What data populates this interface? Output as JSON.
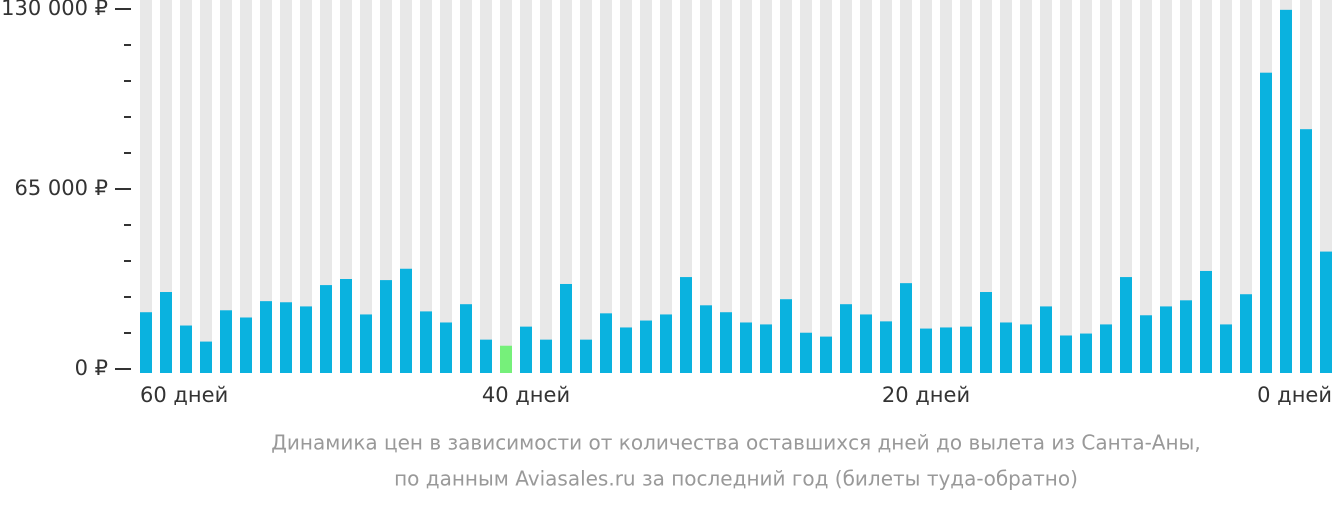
{
  "chart_data": {
    "type": "bar",
    "categories": [
      "60 дней",
      null,
      null,
      null,
      null,
      null,
      null,
      null,
      null,
      null,
      null,
      null,
      null,
      null,
      null,
      null,
      null,
      null,
      null,
      "40 дней",
      null,
      null,
      null,
      null,
      null,
      null,
      null,
      null,
      null,
      null,
      null,
      null,
      null,
      null,
      null,
      null,
      null,
      null,
      null,
      "20 дней",
      null,
      null,
      null,
      null,
      null,
      null,
      null,
      null,
      null,
      null,
      null,
      null,
      null,
      null,
      null,
      null,
      null,
      null,
      null,
      "0 дней"
    ],
    "values": [
      20500,
      27800,
      15700,
      9900,
      21200,
      18600,
      24500,
      24100,
      22600,
      30300,
      32500,
      19700,
      32100,
      36200,
      20800,
      16800,
      23400,
      10600,
      8400,
      15300,
      10600,
      30700,
      10600,
      20100,
      15000,
      17500,
      19700,
      33200,
      23000,
      20500,
      16800,
      16100,
      25200,
      13100,
      11700,
      23400,
      19700,
      17200,
      31000,
      14600,
      15000,
      15300,
      27800,
      16800,
      16100,
      22600,
      12100,
      12800,
      16100,
      33200,
      19400,
      22600,
      24800,
      35400,
      16100,
      27000,
      107000,
      129700,
      86600,
      42400
    ],
    "colors": [
      "#0ab2df",
      "#0ab2df",
      "#0ab2df",
      "#0ab2df",
      "#0ab2df",
      "#0ab2df",
      "#0ab2df",
      "#0ab2df",
      "#0ab2df",
      "#0ab2df",
      "#0ab2df",
      "#0ab2df",
      "#0ab2df",
      "#0ab2df",
      "#0ab2df",
      "#0ab2df",
      "#0ab2df",
      "#0ab2df",
      "#76f07a",
      "#0ab2df",
      "#0ab2df",
      "#0ab2df",
      "#0ab2df",
      "#0ab2df",
      "#0ab2df",
      "#0ab2df",
      "#0ab2df",
      "#0ab2df",
      "#0ab2df",
      "#0ab2df",
      "#0ab2df",
      "#0ab2df",
      "#0ab2df",
      "#0ab2df",
      "#0ab2df",
      "#0ab2df",
      "#0ab2df",
      "#0ab2df",
      "#0ab2df",
      "#0ab2df",
      "#0ab2df",
      "#0ab2df",
      "#0ab2df",
      "#0ab2df",
      "#0ab2df",
      "#0ab2df",
      "#0ab2df",
      "#0ab2df",
      "#0ab2df",
      "#0ab2df",
      "#0ab2df",
      "#0ab2df",
      "#0ab2df",
      "#0ab2df",
      "#0ab2df",
      "#0ab2df",
      "#0ab2df",
      "#0ab2df",
      "#0ab2df",
      "#0ab2df"
    ],
    "ylim": [
      0,
      130000
    ],
    "yticks": [
      {
        "value": 0,
        "label": "0 ₽"
      },
      {
        "value": 65000,
        "label": "65 000 ₽"
      },
      {
        "value": 130000,
        "label": "130 000 ₽"
      }
    ],
    "minor_yticks": [
      13000,
      26000,
      39000,
      52000,
      78000,
      91000,
      104000,
      117000
    ],
    "caption": [
      "Динамика цен в зависимости от количества оставшихся дней до вылета из Санта-Аны,",
      "по данным Aviasales.ru за последний год (билеты туда-обратно)"
    ]
  }
}
